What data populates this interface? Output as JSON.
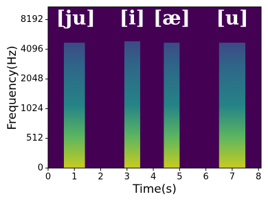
{
  "chart_data": {
    "type": "spectrogram",
    "xlabel": "Time(s)",
    "ylabel": "Frequency(Hz)",
    "xlim": [
      0,
      8.1
    ],
    "xticks": [
      0,
      1,
      2,
      3,
      4,
      5,
      6,
      7,
      8
    ],
    "ylim": [
      0,
      11025
    ],
    "yticks": [
      0,
      512,
      1024,
      2048,
      4096,
      8192
    ],
    "background": "#440154",
    "segments": [
      {
        "label": "[ju]",
        "start": 0.6,
        "end": 1.4,
        "fmax": 5000,
        "label_x": 1.05
      },
      {
        "label": "[i]",
        "start": 2.9,
        "end": 3.5,
        "fmax": 5200,
        "label_x": 3.2
      },
      {
        "label": "[æ]",
        "start": 4.4,
        "end": 5.0,
        "fmax": 5000,
        "label_x": 4.7
      },
      {
        "label": "[u]",
        "start": 6.5,
        "end": 7.5,
        "fmax": 5000,
        "label_x": 7.0
      }
    ]
  }
}
